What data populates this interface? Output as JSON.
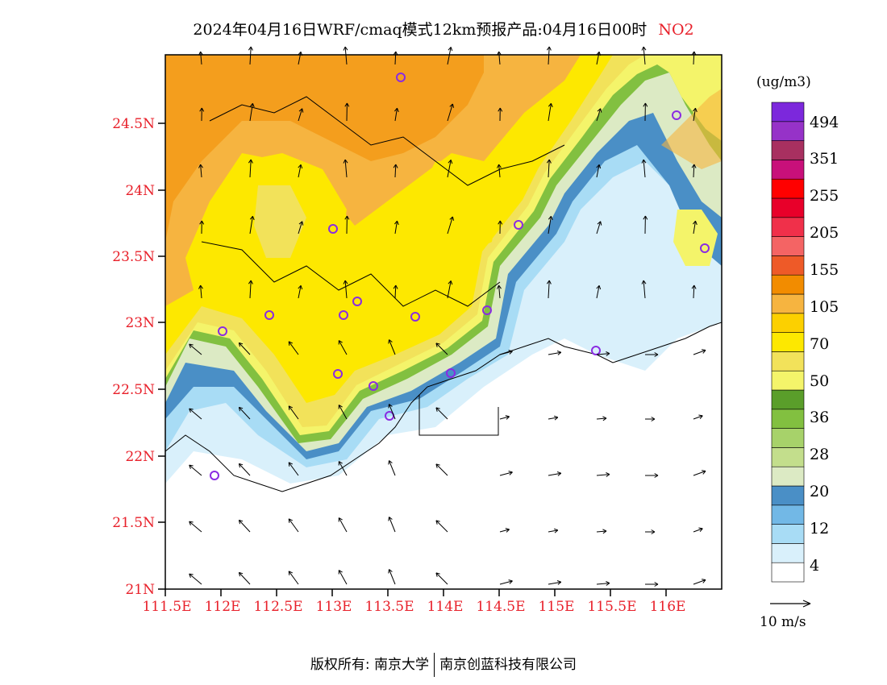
{
  "title": {
    "text": "2024年04月16日WRF/cmaq模式12km预报产品:04月16日00时",
    "species": "NO2"
  },
  "colorbar": {
    "unit": "(ug/m3)",
    "colors": [
      "#ffffff",
      "#d9f0fb",
      "#a8dcf5",
      "#72b8e6",
      "#4a8fc6",
      "#dceac4",
      "#c3de8c",
      "#a7d26a",
      "#82c040",
      "#5a9e2a",
      "#f4f46a",
      "#f2e25a",
      "#fde800",
      "#fcd000",
      "#f6b440",
      "#f28c00",
      "#ee5a28",
      "#f46464",
      "#f0304a",
      "#e8002a",
      "#ff0000",
      "#c8107a",
      "#a83060",
      "#9632c8",
      "#7c28dc"
    ],
    "labels": [
      "4",
      "12",
      "20",
      "28",
      "36",
      "50",
      "70",
      "105",
      "155",
      "205",
      "255",
      "351",
      "494"
    ]
  },
  "axes": {
    "lat_labels": [
      "24.5N",
      "24N",
      "23.5N",
      "23N",
      "22.5N",
      "22N",
      "21.5N",
      "21N"
    ],
    "lon_labels": [
      "111.5E",
      "112E",
      "112.5E",
      "113E",
      "113.5E",
      "114E",
      "114.5E",
      "115E",
      "115.5E",
      "116E"
    ]
  },
  "wind_reference": {
    "label": "10 m/s"
  },
  "footer": {
    "left": "版权所有: 南京大学",
    "right": "南京创蓝科技有限公司"
  }
}
